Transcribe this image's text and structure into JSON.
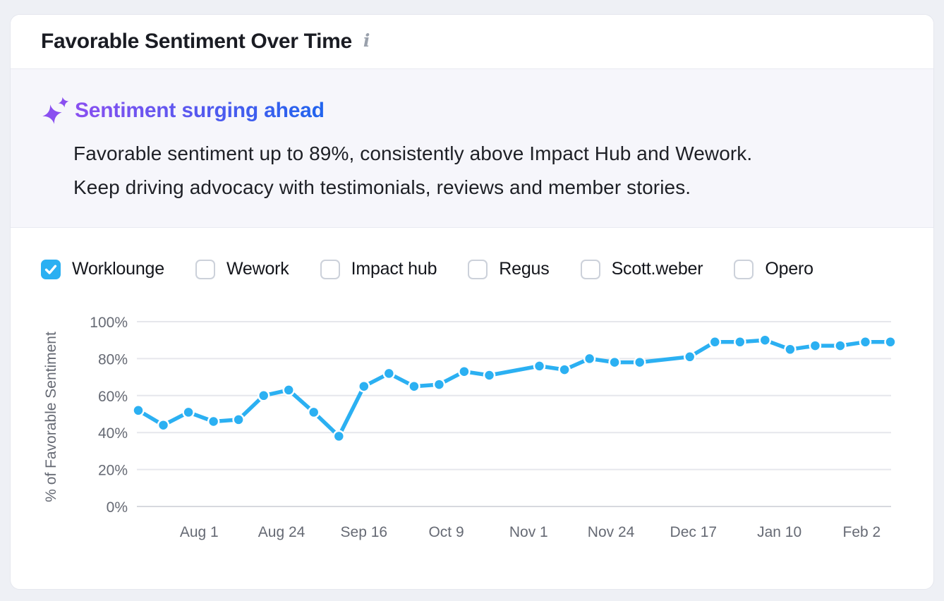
{
  "header": {
    "title": "Favorable Sentiment Over Time"
  },
  "insight": {
    "headline": "Sentiment surging ahead",
    "body_lines": [
      "Favorable sentiment up to 89%, consistently above Impact Hub and Wework.",
      "Keep driving advocacy with testimonials, reviews and member stories."
    ]
  },
  "filters": [
    {
      "label": "Worklounge",
      "checked": true
    },
    {
      "label": "Wework",
      "checked": false
    },
    {
      "label": "Impact hub",
      "checked": false
    },
    {
      "label": "Regus",
      "checked": false
    },
    {
      "label": "Scott.weber",
      "checked": false
    },
    {
      "label": "Opero",
      "checked": false
    }
  ],
  "chart_data": {
    "type": "line",
    "title": "Favorable Sentiment Over Time",
    "xlabel": "",
    "ylabel": "% of Favorable Sentiment",
    "ylim": [
      0,
      100
    ],
    "grid": true,
    "y_ticks": [
      {
        "value": 0,
        "label": "0%"
      },
      {
        "value": 20,
        "label": "20%"
      },
      {
        "value": 40,
        "label": "40%"
      },
      {
        "value": 60,
        "label": "60%"
      },
      {
        "value": 80,
        "label": "80%"
      },
      {
        "value": 100,
        "label": "100%"
      }
    ],
    "x_ticks": [
      {
        "label": "Aug 1",
        "day": 17
      },
      {
        "label": "Aug 24",
        "day": 40
      },
      {
        "label": "Sep 16",
        "day": 63
      },
      {
        "label": "Oct 9",
        "day": 86
      },
      {
        "label": "Nov 1",
        "day": 109
      },
      {
        "label": "Nov 24",
        "day": 132
      },
      {
        "label": "Dec 17",
        "day": 155
      },
      {
        "label": "Jan 10",
        "day": 179
      },
      {
        "label": "Feb 2",
        "day": 202
      }
    ],
    "x_range_days": [
      0,
      210
    ],
    "series": [
      {
        "name": "Worklounge",
        "color": "#2bb0f2",
        "points": [
          {
            "day": 0,
            "value": 52
          },
          {
            "day": 7,
            "value": 44
          },
          {
            "day": 14,
            "value": 51
          },
          {
            "day": 21,
            "value": 46
          },
          {
            "day": 28,
            "value": 47
          },
          {
            "day": 35,
            "value": 60
          },
          {
            "day": 42,
            "value": 63
          },
          {
            "day": 49,
            "value": 51
          },
          {
            "day": 56,
            "value": 38
          },
          {
            "day": 63,
            "value": 65
          },
          {
            "day": 70,
            "value": 72
          },
          {
            "day": 77,
            "value": 65
          },
          {
            "day": 84,
            "value": 66
          },
          {
            "day": 91,
            "value": 73
          },
          {
            "day": 98,
            "value": 71
          },
          {
            "day": 112,
            "value": 76
          },
          {
            "day": 119,
            "value": 74
          },
          {
            "day": 126,
            "value": 80
          },
          {
            "day": 133,
            "value": 78
          },
          {
            "day": 140,
            "value": 78
          },
          {
            "day": 154,
            "value": 81
          },
          {
            "day": 161,
            "value": 89
          },
          {
            "day": 168,
            "value": 89
          },
          {
            "day": 175,
            "value": 90
          },
          {
            "day": 182,
            "value": 85
          },
          {
            "day": 189,
            "value": 87
          },
          {
            "day": 196,
            "value": 87
          },
          {
            "day": 203,
            "value": 89
          },
          {
            "day": 210,
            "value": 89
          }
        ]
      }
    ]
  },
  "colors": {
    "accent_blue": "#2bb0f2",
    "gradient_from": "#8a4ff0",
    "gradient_to": "#2064ee",
    "sparkle": "#8a4ff0",
    "grid_line": "#e6e7ec",
    "zero_line": "#d7d9de",
    "axis_text": "#666a74",
    "title_text": "#1a1c23",
    "body_text": "#1e2026",
    "insight_bg": "#f6f6fb",
    "info_icon": "#9aa1ac",
    "checkbox_border": "#ccd1da"
  }
}
